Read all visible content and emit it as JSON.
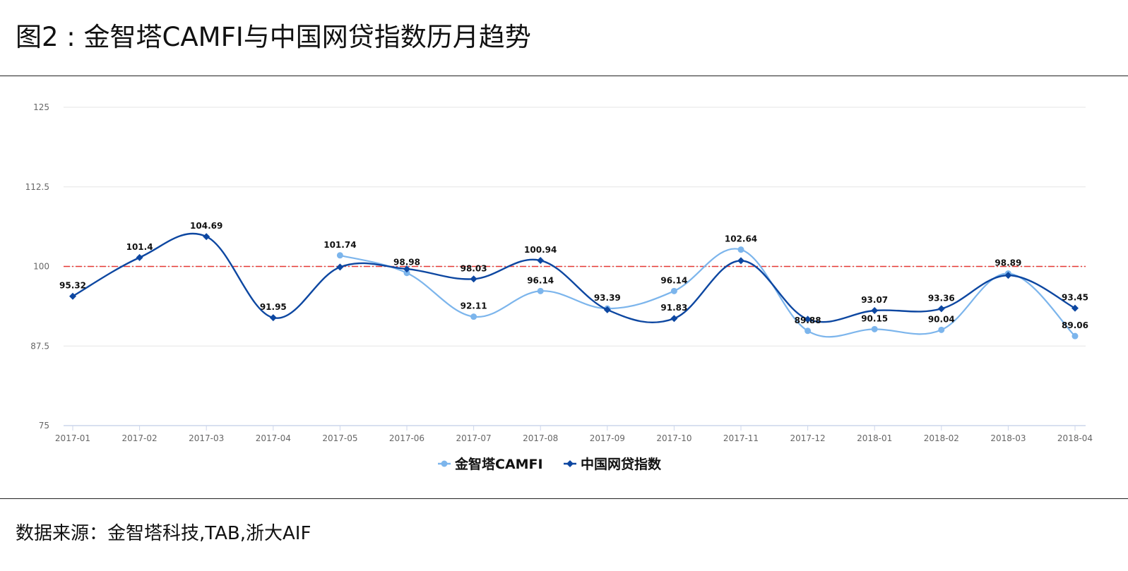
{
  "title": "图2 : 金智塔CAMFI与中国网贷指数历月趋势",
  "source": "数据来源：金智塔科技,TAB,浙大AIF",
  "chart_data": {
    "type": "line",
    "categories": [
      "2017-01",
      "2017-02",
      "2017-03",
      "2017-04",
      "2017-05",
      "2017-06",
      "2017-07",
      "2017-08",
      "2017-09",
      "2017-10",
      "2017-11",
      "2017-12",
      "2018-01",
      "2018-02",
      "2018-03",
      "2018-04"
    ],
    "y_ticks": [
      "125",
      "112.5",
      "100",
      "87.5",
      "75"
    ],
    "ylim": [
      75,
      125
    ],
    "reference_line": 100,
    "grid": true,
    "legend_position": "bottom-center",
    "series": [
      {
        "name": "金智塔CAMFI",
        "color": "#7cb5ec",
        "marker": "circle",
        "values": [
          null,
          null,
          null,
          null,
          101.74,
          98.98,
          92.11,
          96.14,
          93.39,
          96.14,
          102.64,
          89.88,
          90.15,
          90.04,
          98.89,
          89.06
        ],
        "labels": [
          null,
          null,
          null,
          null,
          "101.74",
          "98.98",
          "92.11",
          "96.14",
          "93.39",
          "96.14",
          "102.64",
          "89.88",
          "90.15",
          "90.04",
          "98.89",
          "89.06"
        ]
      },
      {
        "name": "中国网贷指数",
        "color": "#0d47a1",
        "marker": "diamond",
        "values": [
          95.32,
          101.4,
          104.69,
          91.95,
          99.9,
          99.6,
          98.03,
          100.94,
          93.2,
          91.83,
          100.9,
          91.7,
          93.07,
          93.36,
          98.6,
          93.45
        ],
        "labels": [
          "95.32",
          "101.4",
          "104.69",
          "91.95",
          null,
          null,
          "98.03",
          "100.94",
          null,
          "91.83",
          null,
          null,
          "93.07",
          "93.36",
          null,
          "93.45"
        ]
      }
    ],
    "colors": {
      "reference": "#e53935",
      "grid": "#e6e6e6",
      "axis": "#ccd6eb"
    }
  }
}
